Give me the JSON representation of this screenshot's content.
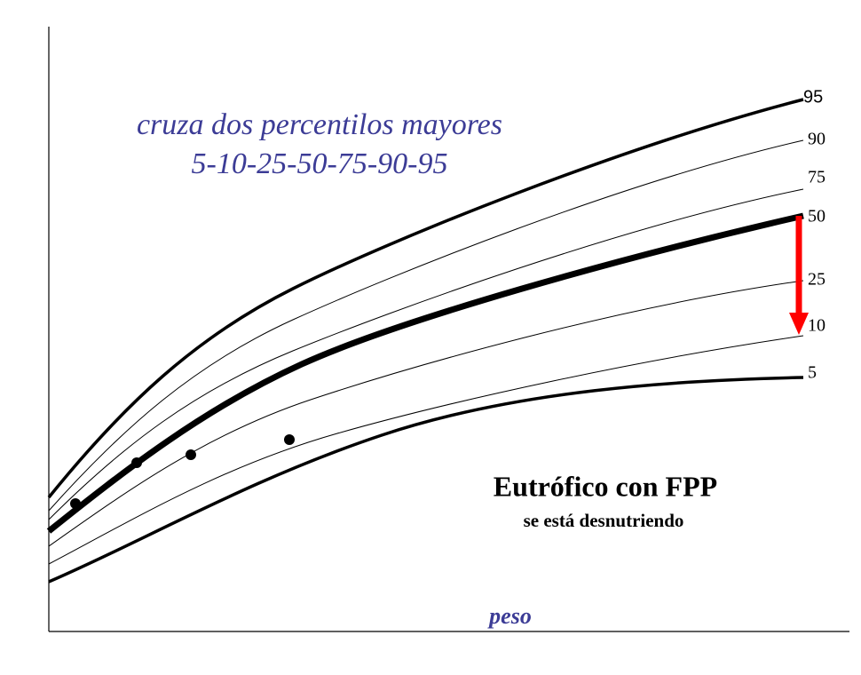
{
  "title": {
    "line1": "cruza dos percentilos mayores",
    "line2": "5-10-25-50-75-90-95"
  },
  "percentiles": [
    "95",
    "90",
    "75",
    "50",
    "25",
    "10",
    "5"
  ],
  "message": {
    "heading": "Eutrófico con FPP",
    "subheading": "se está desnutriendo"
  },
  "axis_label": "peso"
}
